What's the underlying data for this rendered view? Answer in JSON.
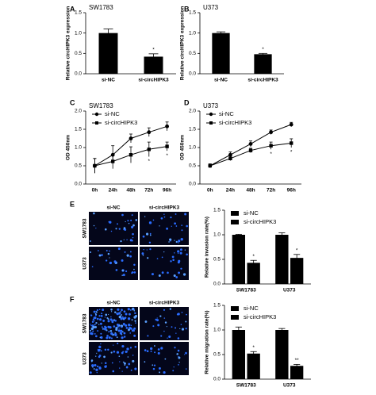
{
  "panel_letters": [
    "A",
    "B",
    "C",
    "D",
    "E",
    "F"
  ],
  "images": [
    {
      "columns": [
        "si-NC",
        "si-circHIPK3"
      ],
      "rows": [
        "SW1783",
        "U373"
      ]
    },
    {
      "columns": [
        "si-NC",
        "si-circHIPK3"
      ],
      "rows": [
        "SW1783",
        "U373"
      ]
    }
  ],
  "chart_data": [
    {
      "type": "bar",
      "title": "SW1783",
      "ylabel": "Relative circHIPK3 expression",
      "categories": [
        "si-NC",
        "si-circHIPK3"
      ],
      "values": [
        1.0,
        0.42
      ],
      "errors": [
        0.1,
        0.07
      ],
      "significance": [
        null,
        "*"
      ],
      "color": "#000000",
      "ylim": [
        0,
        1.5
      ],
      "yticks": [
        {
          "value": 0,
          "label": "0.0"
        },
        0.5,
        {
          "value": 1,
          "label": "1.0"
        },
        1.5
      ]
    },
    {
      "type": "bar",
      "title": "U373",
      "ylabel": "Relative circHIPK3 expression",
      "categories": [
        "si-NC",
        "si-circHIPK3"
      ],
      "values": [
        1.0,
        0.48
      ],
      "errors": [
        0.03,
        0.02
      ],
      "significance": [
        null,
        "*"
      ],
      "color": "#000000",
      "ylim": [
        0,
        1.5
      ],
      "yticks": [
        {
          "value": 0,
          "label": "0.0"
        },
        0.5,
        {
          "value": 1,
          "label": "1.0"
        },
        1.5
      ]
    },
    {
      "type": "line",
      "title": "SW1783",
      "ylabel": "OD 450nm",
      "categories": [
        "0h",
        "24h",
        "48h",
        "72h",
        "96h"
      ],
      "series": [
        {
          "name": "si-NC",
          "color": "#000000",
          "marker": "circle",
          "values": [
            0.5,
            0.8,
            1.25,
            1.42,
            1.58
          ],
          "errors": [
            0.2,
            0.25,
            0.12,
            0.12,
            0.12
          ]
        },
        {
          "name": "si-circHIPK3",
          "color": "#000000",
          "marker": "square",
          "values": [
            0.5,
            0.62,
            0.8,
            0.95,
            1.03
          ],
          "errors": [
            0.2,
            0.2,
            0.22,
            0.2,
            0.12
          ],
          "significance": [
            null,
            null,
            null,
            "*",
            "*"
          ]
        }
      ],
      "ylim": [
        0,
        2
      ],
      "yticks": [
        {
          "value": 0,
          "label": "0.0"
        },
        0.5,
        {
          "value": 1,
          "label": "1.0"
        },
        1.5,
        {
          "value": 2,
          "label": "2.0"
        }
      ],
      "legend": "top-left"
    },
    {
      "type": "line",
      "title": "U373",
      "ylabel": "OD 450nm",
      "categories": [
        "0h",
        "24h",
        "48h",
        "72h",
        "96h"
      ],
      "series": [
        {
          "name": "si-NC",
          "color": "#000000",
          "marker": "circle",
          "values": [
            0.5,
            0.8,
            1.1,
            1.42,
            1.63
          ],
          "errors": [
            0.05,
            0.08,
            0.08,
            0.06,
            0.06
          ]
        },
        {
          "name": "si-circHIPK3",
          "color": "#000000",
          "marker": "square",
          "values": [
            0.5,
            0.7,
            0.92,
            1.05,
            1.12
          ],
          "errors": [
            0.05,
            0.06,
            0.06,
            0.1,
            0.12
          ],
          "significance": [
            null,
            null,
            null,
            "*",
            "*"
          ]
        }
      ],
      "ylim": [
        0,
        2
      ],
      "yticks": [
        {
          "value": 0,
          "label": "0.0"
        },
        0.5,
        {
          "value": 1,
          "label": "1.0"
        },
        1.5,
        {
          "value": 2,
          "label": "2.0"
        }
      ],
      "legend": "top-left"
    },
    {
      "type": "bar",
      "ylabel": "Relative invasion rate(%)",
      "categories": [
        "SW1783",
        "U373"
      ],
      "series": [
        {
          "name": "si-NC",
          "color": "#000000",
          "values": [
            1.0,
            1.0
          ],
          "errors": [
            0.01,
            0.04
          ]
        },
        {
          "name": "si-circHIPK3",
          "color": "#000000",
          "values": [
            0.43,
            0.53
          ],
          "errors": [
            0.05,
            0.07
          ],
          "significance": [
            "*",
            "*"
          ]
        }
      ],
      "ylim": [
        0,
        1.5
      ],
      "yticks": [
        {
          "value": 0,
          "label": "0.0"
        },
        0.5,
        {
          "value": 1,
          "label": "1.0"
        },
        1.5
      ],
      "legend": "top-left"
    },
    {
      "type": "bar",
      "ylabel": "Relative migration rate(%)",
      "categories": [
        "SW1783",
        "U373"
      ],
      "series": [
        {
          "name": "si-NC",
          "color": "#000000",
          "values": [
            1.0,
            1.0
          ],
          "errors": [
            0.06,
            0.03
          ]
        },
        {
          "name": "si-circHIPK3",
          "color": "#000000",
          "values": [
            0.52,
            0.27
          ],
          "errors": [
            0.04,
            0.03
          ],
          "significance": [
            "*",
            "**"
          ]
        }
      ],
      "ylim": [
        0,
        1.5
      ],
      "yticks": [
        {
          "value": 0,
          "label": "0.0"
        },
        0.5,
        {
          "value": 1,
          "label": "1.0"
        },
        1.5
      ],
      "legend": "top-left"
    }
  ]
}
